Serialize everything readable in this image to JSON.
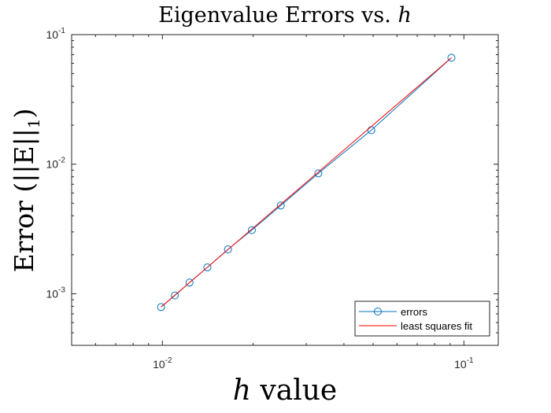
{
  "chart_data": {
    "type": "scatter",
    "title": "Eigenvalue Errors vs. h",
    "title_text": "Eigenvalue Errors vs.",
    "title_var": "h",
    "xlabel": "h value",
    "xlabel_var": "h",
    "xlabel_text": "value",
    "ylabel": "Error (||E||1)",
    "ylabel_text": "Error (||E||",
    "ylabel_sub": "1",
    "ylabel_close": ")",
    "xscale": "log",
    "yscale": "log",
    "xlim": [
      0.005,
      0.13
    ],
    "ylim": [
      0.0004,
      0.1
    ],
    "grid": false,
    "legend_position": "bottom-right",
    "x_ticks": [
      {
        "value": 0.01,
        "base": "10",
        "exp": "-2"
      },
      {
        "value": 0.1,
        "base": "10",
        "exp": "-1"
      }
    ],
    "y_ticks": [
      {
        "value": 0.001,
        "base": "10",
        "exp": "-3"
      },
      {
        "value": 0.01,
        "base": "10",
        "exp": "-2"
      },
      {
        "value": 0.1,
        "base": "10",
        "exp": "-1"
      }
    ],
    "series": [
      {
        "name": "errors",
        "color": "#0072BD",
        "marker": "circle",
        "x": [
          0.0099,
          0.011,
          0.0123,
          0.0141,
          0.0165,
          0.0198,
          0.0247,
          0.0329,
          0.0493,
          0.0909
        ],
        "y": [
          0.00079,
          0.00097,
          0.00122,
          0.0016,
          0.0022,
          0.0031,
          0.0048,
          0.0085,
          0.0183,
          0.0663
        ]
      },
      {
        "name": "least squares fit",
        "color": "#FF0000",
        "marker": "none",
        "x": [
          0.0099,
          0.0909
        ],
        "y": [
          0.00079,
          0.0663
        ]
      }
    ]
  }
}
